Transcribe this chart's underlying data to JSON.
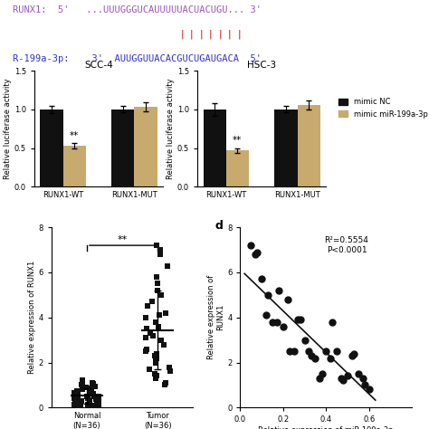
{
  "top_text": {
    "runx1_color": "#9b59b6",
    "mir_color": "#3333cc",
    "binding_color": "#cc0000"
  },
  "bar_scc4": {
    "title": "SCC-4",
    "groups": [
      "RUNX1-WT",
      "RUNX1-MUT"
    ],
    "black_values": [
      1.0,
      1.0
    ],
    "tan_values": [
      0.53,
      1.03
    ],
    "black_errors": [
      0.05,
      0.04
    ],
    "tan_errors": [
      0.03,
      0.06
    ],
    "ylabel": "Relative luciferase activity",
    "ylim": [
      0,
      1.5
    ],
    "yticks": [
      0.0,
      0.5,
      1.0,
      1.5
    ],
    "bar_width": 0.32,
    "black_color": "#111111",
    "tan_color": "#c8a96e"
  },
  "bar_hsc3": {
    "title": "HSC-3",
    "groups": [
      "RUNX1-WT",
      "RUNX1-MUT"
    ],
    "black_values": [
      1.0,
      1.0
    ],
    "tan_values": [
      0.47,
      1.06
    ],
    "black_errors": [
      0.08,
      0.04
    ],
    "tan_errors": [
      0.03,
      0.06
    ],
    "ylabel": "Relative luciferase activity",
    "ylim": [
      0,
      1.5
    ],
    "yticks": [
      0.0,
      0.5,
      1.0,
      1.5
    ],
    "bar_width": 0.32,
    "black_color": "#111111",
    "tan_color": "#c8a96e"
  },
  "legend": {
    "labels": [
      "mimic NC",
      "mimic miR-199a-3p"
    ],
    "black_color": "#111111",
    "tan_color": "#c8a96e"
  },
  "scatter_c": {
    "normal_y": [
      0.05,
      0.08,
      0.1,
      0.12,
      0.15,
      0.18,
      0.2,
      0.22,
      0.25,
      0.28,
      0.3,
      0.33,
      0.35,
      0.38,
      0.4,
      0.42,
      0.45,
      0.48,
      0.5,
      0.55,
      0.6,
      0.65,
      0.7,
      0.75,
      0.8,
      0.85,
      0.9,
      0.95,
      1.0,
      1.05,
      1.1,
      1.15,
      1.2,
      0.0,
      0.7,
      0.5
    ],
    "tumor_y": [
      1.0,
      1.1,
      1.3,
      1.4,
      1.5,
      1.6,
      1.7,
      1.8,
      2.0,
      2.1,
      2.2,
      2.3,
      2.4,
      2.5,
      2.6,
      2.8,
      3.0,
      3.1,
      3.2,
      3.3,
      3.5,
      3.6,
      3.8,
      4.0,
      4.1,
      4.2,
      4.5,
      4.7,
      5.0,
      5.2,
      5.5,
      5.8,
      6.3,
      6.8,
      7.0,
      7.2
    ],
    "ylabel": "Relative expression of RUNX1",
    "xlabel_normal": "Normal\n(N=36)",
    "xlabel_tumor": "Tumor\n(N=36)",
    "significance": "**",
    "ylim": [
      0,
      8
    ],
    "yticks": [
      0,
      2,
      4,
      6,
      8
    ],
    "marker_color": "#111111",
    "marker_size": 5
  },
  "scatter_d": {
    "panel_label": "d",
    "r_squared": "R²=0.5554",
    "p_value": "P<0.0001",
    "xlabel": "Relative expression of miR-199a-3p",
    "ylabel": "Relative expression of\nRUNX1",
    "xlim": [
      0,
      0.8
    ],
    "ylim": [
      0,
      8
    ],
    "xticks": [
      0.0,
      0.2,
      0.4,
      0.6
    ],
    "yticks": [
      0,
      2,
      4,
      6,
      8
    ],
    "x_data": [
      0.05,
      0.07,
      0.08,
      0.1,
      0.12,
      0.13,
      0.15,
      0.17,
      0.18,
      0.2,
      0.22,
      0.23,
      0.25,
      0.27,
      0.28,
      0.3,
      0.32,
      0.33,
      0.35,
      0.37,
      0.38,
      0.4,
      0.42,
      0.43,
      0.45,
      0.47,
      0.48,
      0.5,
      0.52,
      0.53,
      0.55,
      0.57,
      0.58,
      0.6
    ],
    "y_data": [
      7.2,
      6.8,
      6.9,
      5.7,
      4.1,
      5.0,
      3.8,
      3.8,
      5.2,
      3.6,
      4.8,
      2.5,
      2.5,
      3.9,
      3.9,
      3.0,
      2.5,
      2.3,
      2.2,
      1.3,
      1.5,
      2.5,
      2.2,
      3.8,
      2.5,
      1.3,
      1.2,
      1.4,
      2.3,
      2.4,
      1.5,
      1.3,
      1.0,
      0.8
    ],
    "marker_color": "#111111",
    "marker_size": 5,
    "line_color": "#111111"
  }
}
